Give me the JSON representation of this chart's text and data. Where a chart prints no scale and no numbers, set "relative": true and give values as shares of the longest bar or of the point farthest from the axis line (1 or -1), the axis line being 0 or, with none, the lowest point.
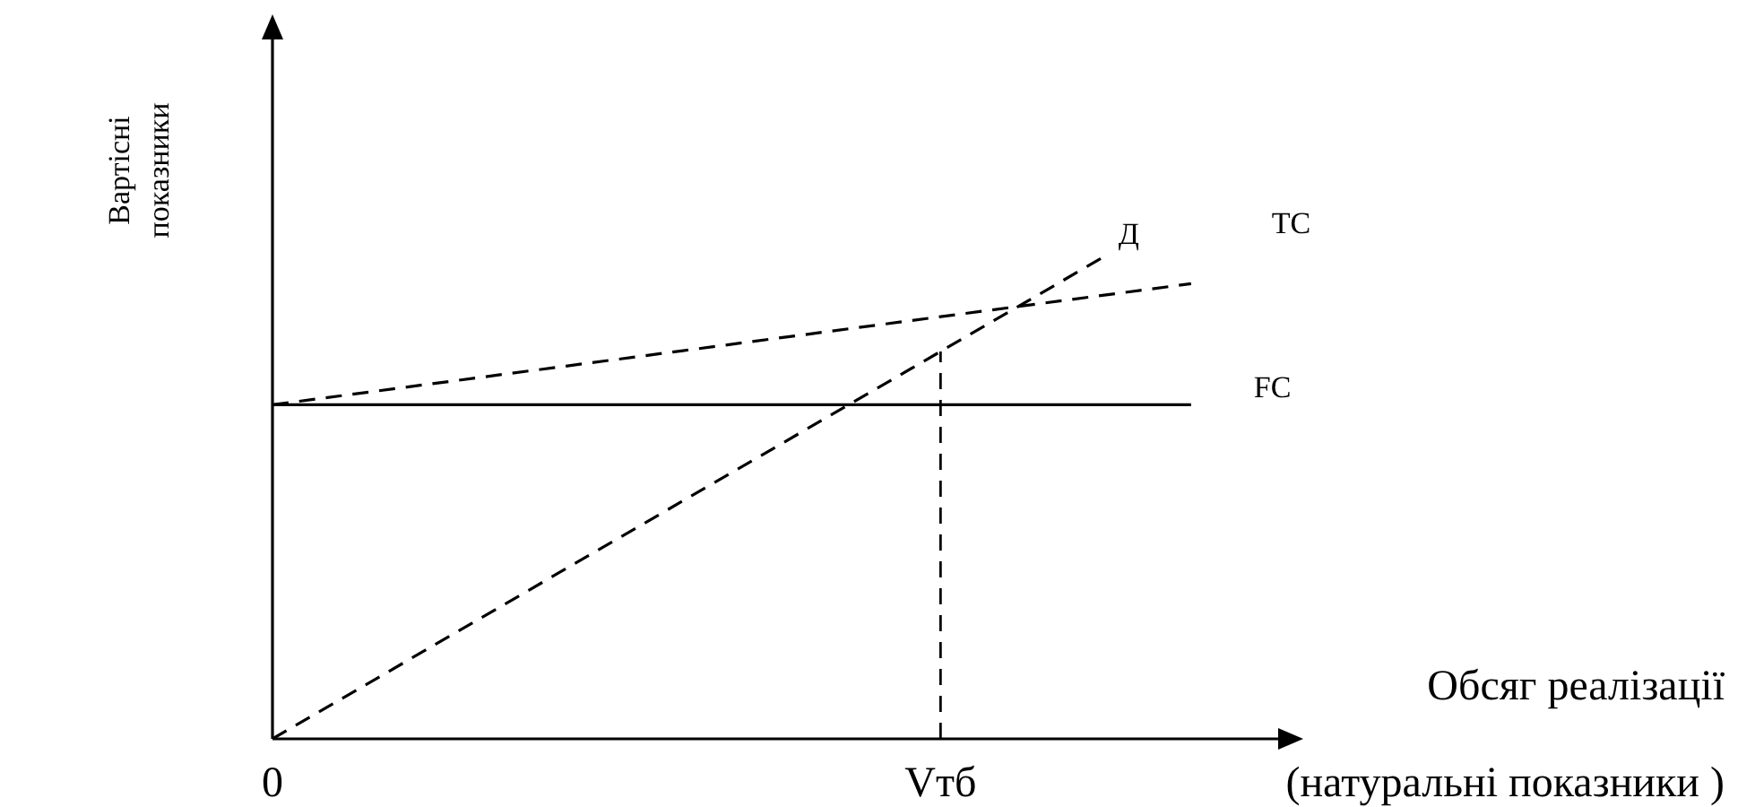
{
  "chart_data": {
    "type": "line",
    "relative": true,
    "xlabel": "Обсяг реалізації",
    "ylabel": "Вартісні показники",
    "annotations": [
      "(натуральні показники )"
    ],
    "categories": [
      "0",
      null,
      null,
      null,
      null,
      null,
      null,
      null,
      "Vтб",
      null,
      null,
      null,
      null
    ],
    "series": [
      {
        "name": "Д",
        "color": "#000000",
        "line_style": "dashed",
        "values": [
          0,
          null,
          null,
          null,
          null,
          null,
          null,
          null,
          null,
          null,
          1,
          null,
          null
        ]
      },
      {
        "name": "TC",
        "color": "#000000",
        "line_style": "dashed",
        "values": [
          0.69,
          null,
          null,
          null,
          null,
          null,
          null,
          null,
          null,
          null,
          null,
          0.94,
          null
        ]
      },
      {
        "name": "FC",
        "color": "#000000",
        "line_style": "solid",
        "values": [
          0.69,
          null,
          null,
          null,
          null,
          null,
          null,
          null,
          null,
          null,
          null,
          0.69,
          null
        ]
      }
    ],
    "ref_lines": [
      {
        "axis": "x",
        "value": "Vтб",
        "line_style": "dashed"
      }
    ],
    "legend": false,
    "marker": "none"
  }
}
